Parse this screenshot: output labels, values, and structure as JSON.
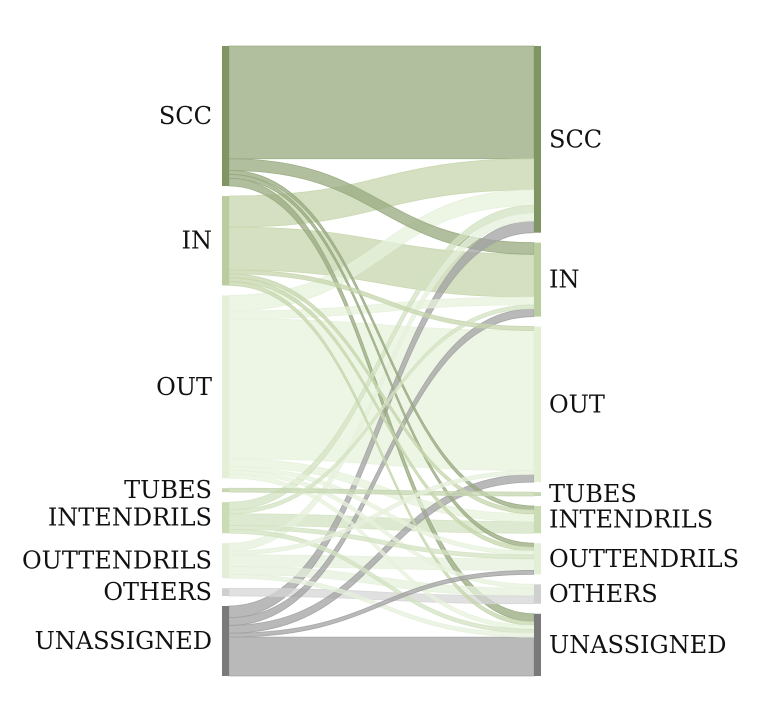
{
  "chart_data": {
    "type": "sankey",
    "title": "",
    "left_nodes": [
      {
        "name": "SCC",
        "value": 36,
        "color": "#7f9563"
      },
      {
        "name": "IN",
        "value": 23,
        "color": "#b9cd9e"
      },
      {
        "name": "OUT",
        "value": 47,
        "color": "#e4f0d6"
      },
      {
        "name": "TUBES",
        "value": 1,
        "color": "#c6d6b0"
      },
      {
        "name": "INTENDRILS",
        "value": 8,
        "color": "#c9dcb3"
      },
      {
        "name": "OUTTENDRILS",
        "value": 9,
        "color": "#e2eed6"
      },
      {
        "name": "OTHERS",
        "value": 2,
        "color": "#cfcfcf"
      },
      {
        "name": "UNASSIGNED",
        "value": 18,
        "color": "#7a7a7a"
      }
    ],
    "right_nodes": [
      {
        "name": "SCC",
        "value": 48,
        "color": "#7f9563"
      },
      {
        "name": "IN",
        "value": 19,
        "color": "#b9cd9e"
      },
      {
        "name": "OUT",
        "value": 40,
        "color": "#e4f0d6"
      },
      {
        "name": "TUBES",
        "value": 1,
        "color": "#c6d6b0"
      },
      {
        "name": "INTENDRILS",
        "value": 7,
        "color": "#c9dcb3"
      },
      {
        "name": "OUTTENDRILS",
        "value": 8,
        "color": "#e2eed6"
      },
      {
        "name": "OTHERS",
        "value": 5,
        "color": "#cfcfcf"
      },
      {
        "name": "UNASSIGNED",
        "value": 16,
        "color": "#7a7a7a"
      }
    ],
    "flows": [
      {
        "source": "SCC",
        "target": "SCC",
        "value": 29,
        "color": "#98a97f"
      },
      {
        "source": "SCC",
        "target": "IN",
        "value": 3,
        "color": "#98a97f"
      },
      {
        "source": "SCC",
        "target": "INTENDRILS",
        "value": 1,
        "color": "#98a97f"
      },
      {
        "source": "SCC",
        "target": "OUTTENDRILS",
        "value": 1,
        "color": "#98a97f"
      },
      {
        "source": "SCC",
        "target": "UNASSIGNED",
        "value": 2,
        "color": "#98a97f"
      },
      {
        "source": "IN",
        "target": "SCC",
        "value": 8,
        "color": "#c5d6ac"
      },
      {
        "source": "IN",
        "target": "IN",
        "value": 11,
        "color": "#c5d6ac"
      },
      {
        "source": "IN",
        "target": "OUT",
        "value": 1,
        "color": "#c5d6ac"
      },
      {
        "source": "IN",
        "target": "INTENDRILS",
        "value": 1,
        "color": "#c5d6ac"
      },
      {
        "source": "IN",
        "target": "OUTTENDRILS",
        "value": 1,
        "color": "#c5d6ac"
      },
      {
        "source": "IN",
        "target": "UNASSIGNED",
        "value": 1,
        "color": "#c5d6ac"
      },
      {
        "source": "OUT",
        "target": "SCC",
        "value": 4,
        "color": "#e7f1dc"
      },
      {
        "source": "OUT",
        "target": "IN",
        "value": 2,
        "color": "#e7f1dc"
      },
      {
        "source": "OUT",
        "target": "OUT",
        "value": 36,
        "color": "#e7f1dc"
      },
      {
        "source": "OUT",
        "target": "INTENDRILS",
        "value": 2,
        "color": "#e7f1dc"
      },
      {
        "source": "OUT",
        "target": "OUTTENDRILS",
        "value": 1,
        "color": "#e7f1dc"
      },
      {
        "source": "OUT",
        "target": "OTHERS",
        "value": 1,
        "color": "#e7f1dc"
      },
      {
        "source": "OUT",
        "target": "UNASSIGNED",
        "value": 1,
        "color": "#e7f1dc"
      },
      {
        "source": "TUBES",
        "target": "TUBES",
        "value": 1,
        "color": "#c6d6b0"
      },
      {
        "source": "INTENDRILS",
        "target": "SCC",
        "value": 2,
        "color": "#d3e2c1"
      },
      {
        "source": "INTENDRILS",
        "target": "IN",
        "value": 1,
        "color": "#d3e2c1"
      },
      {
        "source": "INTENDRILS",
        "target": "INTENDRILS",
        "value": 3,
        "color": "#d3e2c1"
      },
      {
        "source": "INTENDRILS",
        "target": "OUTTENDRILS",
        "value": 1,
        "color": "#d3e2c1"
      },
      {
        "source": "INTENDRILS",
        "target": "UNASSIGNED",
        "value": 1,
        "color": "#d3e2c1"
      },
      {
        "source": "OUTTENDRILS",
        "target": "SCC",
        "value": 2,
        "color": "#e6f0dc"
      },
      {
        "source": "OUTTENDRILS",
        "target": "OUT",
        "value": 1,
        "color": "#e6f0dc"
      },
      {
        "source": "OUTTENDRILS",
        "target": "OUTTENDRILS",
        "value": 3,
        "color": "#e6f0dc"
      },
      {
        "source": "OUTTENDRILS",
        "target": "OTHERS",
        "value": 2,
        "color": "#e6f0dc"
      },
      {
        "source": "OUTTENDRILS",
        "target": "UNASSIGNED",
        "value": 1,
        "color": "#e6f0dc"
      },
      {
        "source": "OTHERS",
        "target": "OTHERS",
        "value": 2,
        "color": "#d5d5d5"
      },
      {
        "source": "UNASSIGNED",
        "target": "SCC",
        "value": 3,
        "color": "#a2a2a2"
      },
      {
        "source": "UNASSIGNED",
        "target": "IN",
        "value": 2,
        "color": "#a2a2a2"
      },
      {
        "source": "UNASSIGNED",
        "target": "OUT",
        "value": 2,
        "color": "#a2a2a2"
      },
      {
        "source": "UNASSIGNED",
        "target": "OUTTENDRILS",
        "value": 1,
        "color": "#a2a2a2"
      },
      {
        "source": "UNASSIGNED",
        "target": "UNASSIGNED",
        "value": 10,
        "color": "#a2a2a2"
      }
    ]
  }
}
